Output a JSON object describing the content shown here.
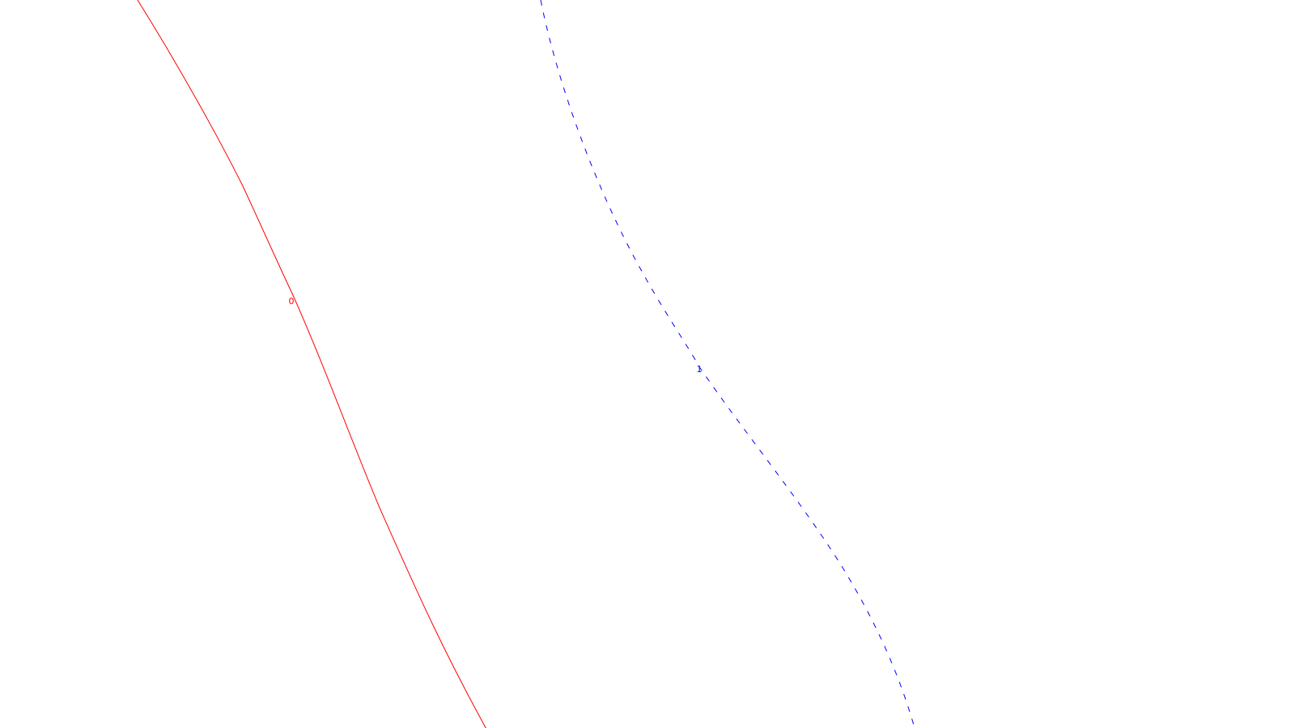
{
  "curves": [
    {
      "id": "curve-0",
      "label": "0",
      "color": "#ff0000",
      "style": "solid"
    },
    {
      "id": "curve-1",
      "label": "1",
      "color": "#0000ff",
      "style": "dashed"
    }
  ]
}
